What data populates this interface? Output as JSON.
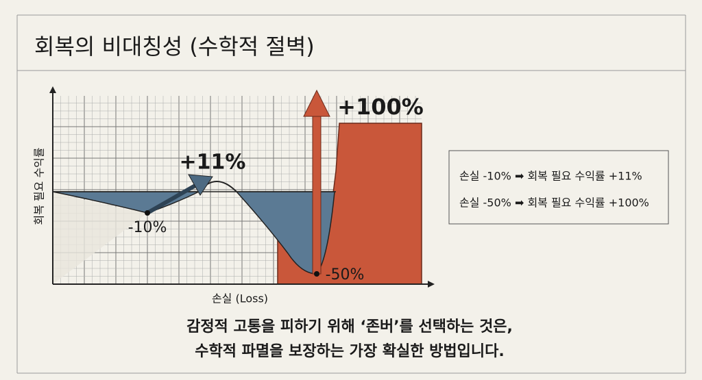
{
  "title": "회복의 비대칭성 (수학적 절벽)",
  "chart": {
    "y_label": "회복 필요 수익률",
    "x_label": "손실 (Loss)",
    "annotations": [
      "+11%",
      "-10%",
      "+100%",
      "-50%"
    ]
  },
  "notes": [
    "손실 -10% ➡ 회복 필요 수익률 +11%",
    "손실 -50% ➡ 회복 필요 수익률 +100%"
  ],
  "caption": [
    "감정적 고통을 피하기 위해 ‘존버’를 선택하는 것은,",
    "수학적 파멸을 보장하는 가장 확실한 방법입니다."
  ]
}
